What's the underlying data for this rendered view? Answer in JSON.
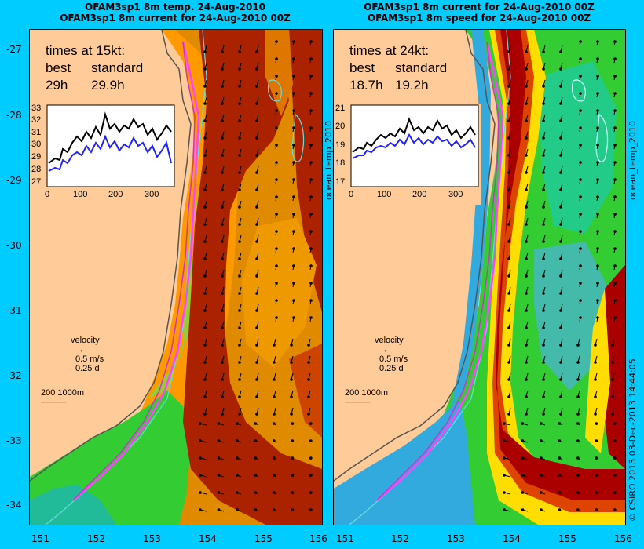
{
  "panels": [
    {
      "title_line1": "OFAM3sp1 8m temp. 24-Aug-2010",
      "title_line2": "OFAM3sp1 8m current for 24-Aug-2010 00Z",
      "times_heading": "times at 15kt:",
      "best_label": "best",
      "standard_label": "standard",
      "best_value": "29h",
      "standard_value": "29.9h",
      "velocity_label": "velocity",
      "velocity_speed": "0.5 m/s",
      "velocity_time": "0.25 d",
      "scale_label": "200  1000m",
      "side_label": "",
      "inset": {
        "y_ticks": [
          "33",
          "32",
          "31",
          "30",
          "29",
          "28",
          "27"
        ],
        "x_ticks": [
          "0",
          "100",
          "200",
          "300"
        ]
      }
    },
    {
      "title_line1": "OFAM3sp1 8m current for 24-Aug-2010 00Z",
      "title_line2": "OFAM3sp1 8m speed for 24-Aug-2010 00Z",
      "times_heading": "times at 24kt:",
      "best_label": "best",
      "standard_label": "standard",
      "best_value": "18.7h",
      "standard_value": "19.2h",
      "velocity_label": "velocity",
      "velocity_speed": "0.5 m/s",
      "velocity_time": "0.25 d",
      "scale_label": "200  1000m",
      "side_label": "ocean_temp_2010",
      "inset": {
        "y_ticks": [
          "21",
          "20",
          "19",
          "18",
          "17"
        ],
        "x_ticks": [
          "0",
          "100",
          "200",
          "300"
        ]
      }
    }
  ],
  "y_axis_ticks": [
    "-27",
    "-28",
    "-29",
    "-30",
    "-31",
    "-32",
    "-33",
    "-34"
  ],
  "x_axis_ticks": [
    "151",
    "152",
    "153",
    "154",
    "155",
    "156"
  ],
  "right_label_1": "ocean_temp_2010",
  "right_label_2": "© CSIRO 2013   03-Dec-2013 14:44:05",
  "colors": {
    "background": "#00ccff",
    "land": "#ffcc99",
    "route": "#ff44ff"
  }
}
